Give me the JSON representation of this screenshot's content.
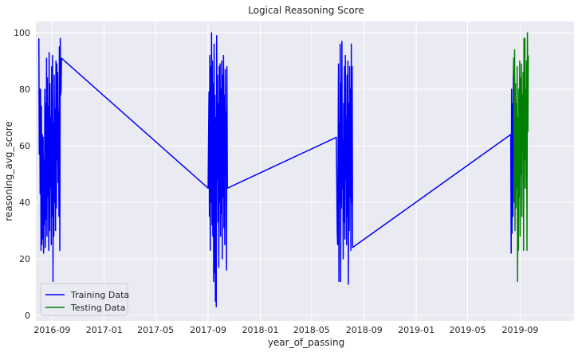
{
  "chart_data": {
    "type": "line",
    "title": "Logical Reasoning Score",
    "xlabel": "year_of_passing",
    "ylabel": "reasoning_avg_score",
    "x_type": "date",
    "xlim": [
      "2016-07-25",
      "2020-01-05"
    ],
    "ylim": [
      -2,
      104
    ],
    "grid": true,
    "background": "#eaeaf2",
    "legend_position": "lower-left",
    "x_ticks": [
      "2016-09-01",
      "2017-01-01",
      "2017-05-01",
      "2017-09-01",
      "2018-01-01",
      "2018-05-01",
      "2018-09-01",
      "2019-01-01",
      "2019-05-01",
      "2019-09-01"
    ],
    "x_tick_labels": [
      "2016-09",
      "2017-01",
      "2017-05",
      "2017-09",
      "2018-01",
      "2018-05",
      "2018-09",
      "2019-01",
      "2019-05",
      "2019-09"
    ],
    "y_ticks": [
      0,
      20,
      40,
      60,
      80,
      100
    ],
    "y_tick_labels": [
      "0",
      "20",
      "40",
      "60",
      "80",
      "100"
    ],
    "series": [
      {
        "name": "Training Data",
        "color": "#0000ff",
        "points": [
          [
            "2016-08-01",
            98
          ],
          [
            "2016-08-02",
            57
          ],
          [
            "2016-08-03",
            80
          ],
          [
            "2016-08-04",
            43
          ],
          [
            "2016-08-05",
            80
          ],
          [
            "2016-08-06",
            23
          ],
          [
            "2016-08-07",
            74
          ],
          [
            "2016-08-08",
            25
          ],
          [
            "2016-08-09",
            64
          ],
          [
            "2016-08-10",
            27
          ],
          [
            "2016-08-11",
            63
          ],
          [
            "2016-08-12",
            22
          ],
          [
            "2016-08-13",
            55
          ],
          [
            "2016-08-14",
            32
          ],
          [
            "2016-08-15",
            80
          ],
          [
            "2016-08-16",
            24
          ],
          [
            "2016-08-17",
            75
          ],
          [
            "2016-08-18",
            34
          ],
          [
            "2016-08-19",
            91
          ],
          [
            "2016-08-20",
            28
          ],
          [
            "2016-08-21",
            84
          ],
          [
            "2016-08-22",
            42
          ],
          [
            "2016-08-23",
            74
          ],
          [
            "2016-08-24",
            23
          ],
          [
            "2016-08-25",
            93
          ],
          [
            "2016-08-26",
            30
          ],
          [
            "2016-08-27",
            82
          ],
          [
            "2016-08-28",
            45
          ],
          [
            "2016-08-29",
            70
          ],
          [
            "2016-08-30",
            25
          ],
          [
            "2016-08-31",
            88
          ],
          [
            "2016-09-01",
            35
          ],
          [
            "2016-09-02",
            92
          ],
          [
            "2016-09-03",
            12
          ],
          [
            "2016-09-04",
            68
          ],
          [
            "2016-09-05",
            28
          ],
          [
            "2016-09-06",
            85
          ],
          [
            "2016-09-07",
            40
          ],
          [
            "2016-09-08",
            73
          ],
          [
            "2016-09-09",
            30
          ],
          [
            "2016-09-10",
            90
          ],
          [
            "2016-09-11",
            38
          ],
          [
            "2016-09-12",
            89
          ],
          [
            "2016-09-13",
            55
          ],
          [
            "2016-09-14",
            86
          ],
          [
            "2016-09-15",
            47
          ],
          [
            "2016-09-16",
            72
          ],
          [
            "2016-09-17",
            35
          ],
          [
            "2016-09-18",
            95
          ],
          [
            "2016-09-19",
            23
          ],
          [
            "2016-09-20",
            98
          ],
          [
            "2016-09-21",
            78
          ],
          [
            "2016-09-22",
            80
          ],
          [
            "2016-09-23",
            91
          ],
          [
            "2017-09-01",
            45
          ],
          [
            "2017-09-03",
            79
          ],
          [
            "2017-09-04",
            35
          ],
          [
            "2017-09-05",
            92
          ],
          [
            "2017-09-06",
            23
          ],
          [
            "2017-09-07",
            88
          ],
          [
            "2017-09-08",
            40
          ],
          [
            "2017-09-09",
            100
          ],
          [
            "2017-09-10",
            32
          ],
          [
            "2017-09-11",
            90
          ],
          [
            "2017-09-12",
            28
          ],
          [
            "2017-09-13",
            82
          ],
          [
            "2017-09-14",
            12
          ],
          [
            "2017-09-15",
            96
          ],
          [
            "2017-09-16",
            15
          ],
          [
            "2017-09-17",
            78
          ],
          [
            "2017-09-18",
            5
          ],
          [
            "2017-09-19",
            70
          ],
          [
            "2017-09-20",
            3
          ],
          [
            "2017-09-21",
            99
          ],
          [
            "2017-09-22",
            48
          ],
          [
            "2017-09-23",
            85
          ],
          [
            "2017-09-24",
            33
          ],
          [
            "2017-09-25",
            75
          ],
          [
            "2017-09-26",
            17
          ],
          [
            "2017-09-27",
            88
          ],
          [
            "2017-09-28",
            40
          ],
          [
            "2017-09-29",
            89
          ],
          [
            "2017-09-30",
            28
          ],
          [
            "2017-10-01",
            80
          ],
          [
            "2017-10-02",
            36
          ],
          [
            "2017-10-03",
            90
          ],
          [
            "2017-10-04",
            20
          ],
          [
            "2017-10-05",
            85
          ],
          [
            "2017-10-06",
            42
          ],
          [
            "2017-10-07",
            92
          ],
          [
            "2017-10-08",
            31
          ],
          [
            "2017-10-09",
            78
          ],
          [
            "2017-10-10",
            25
          ],
          [
            "2017-10-11",
            87
          ],
          [
            "2017-10-12",
            50
          ],
          [
            "2017-10-13",
            72
          ],
          [
            "2017-10-14",
            16
          ],
          [
            "2017-10-15",
            88
          ],
          [
            "2017-10-16",
            45
          ],
          [
            "2018-06-28",
            63
          ],
          [
            "2018-06-30",
            30
          ],
          [
            "2018-07-01",
            25
          ],
          [
            "2018-07-02",
            55
          ],
          [
            "2018-07-03",
            89
          ],
          [
            "2018-07-04",
            12
          ],
          [
            "2018-07-05",
            68
          ],
          [
            "2018-07-06",
            40
          ],
          [
            "2018-07-07",
            96
          ],
          [
            "2018-07-08",
            12
          ],
          [
            "2018-07-09",
            82
          ],
          [
            "2018-07-10",
            38
          ],
          [
            "2018-07-11",
            97
          ],
          [
            "2018-07-12",
            45
          ],
          [
            "2018-07-13",
            62
          ],
          [
            "2018-07-14",
            20
          ],
          [
            "2018-07-15",
            75
          ],
          [
            "2018-07-16",
            33
          ],
          [
            "2018-07-17",
            88
          ],
          [
            "2018-07-18",
            27
          ],
          [
            "2018-07-19",
            92
          ],
          [
            "2018-07-20",
            48
          ],
          [
            "2018-07-21",
            70
          ],
          [
            "2018-07-22",
            25
          ],
          [
            "2018-07-23",
            85
          ],
          [
            "2018-07-24",
            35
          ],
          [
            "2018-07-25",
            90
          ],
          [
            "2018-07-26",
            11
          ],
          [
            "2018-07-27",
            75
          ],
          [
            "2018-07-28",
            30
          ],
          [
            "2018-07-29",
            88
          ],
          [
            "2018-07-30",
            42
          ],
          [
            "2018-07-31",
            80
          ],
          [
            "2018-08-01",
            23
          ],
          [
            "2018-08-02",
            96
          ],
          [
            "2018-08-03",
            40
          ],
          [
            "2018-08-04",
            88
          ],
          [
            "2018-08-05",
            24
          ],
          [
            "2019-08-10",
            64
          ],
          [
            "2019-08-11",
            22
          ],
          [
            "2019-08-12",
            80
          ],
          [
            "2019-08-13",
            29
          ],
          [
            "2019-08-14",
            75
          ],
          [
            "2019-08-15",
            35
          ],
          [
            "2019-08-16",
            85
          ]
        ]
      },
      {
        "name": "Testing Data",
        "color": "#008000",
        "points": [
          [
            "2019-08-16",
            85
          ],
          [
            "2019-08-17",
            91
          ],
          [
            "2019-08-18",
            40
          ],
          [
            "2019-08-19",
            94
          ],
          [
            "2019-08-20",
            30
          ],
          [
            "2019-08-21",
            82
          ],
          [
            "2019-08-22",
            38
          ],
          [
            "2019-08-23",
            75
          ],
          [
            "2019-08-24",
            45
          ],
          [
            "2019-08-25",
            88
          ],
          [
            "2019-08-26",
            12
          ],
          [
            "2019-08-27",
            70
          ],
          [
            "2019-08-28",
            23
          ],
          [
            "2019-08-29",
            80
          ],
          [
            "2019-08-30",
            42
          ],
          [
            "2019-08-31",
            90
          ],
          [
            "2019-09-01",
            28
          ],
          [
            "2019-09-02",
            84
          ],
          [
            "2019-09-03",
            50
          ],
          [
            "2019-09-04",
            89
          ],
          [
            "2019-09-05",
            35
          ],
          [
            "2019-09-06",
            78
          ],
          [
            "2019-09-07",
            60
          ],
          [
            "2019-09-08",
            86
          ],
          [
            "2019-09-09",
            23
          ],
          [
            "2019-09-10",
            98
          ],
          [
            "2019-09-11",
            45
          ],
          [
            "2019-09-12",
            98
          ],
          [
            "2019-09-13",
            55
          ],
          [
            "2019-09-14",
            80
          ],
          [
            "2019-09-15",
            45
          ],
          [
            "2019-09-16",
            90
          ],
          [
            "2019-09-17",
            23
          ],
          [
            "2019-09-18",
            100
          ],
          [
            "2019-09-19",
            65
          ],
          [
            "2019-09-20",
            92
          ]
        ]
      }
    ]
  }
}
